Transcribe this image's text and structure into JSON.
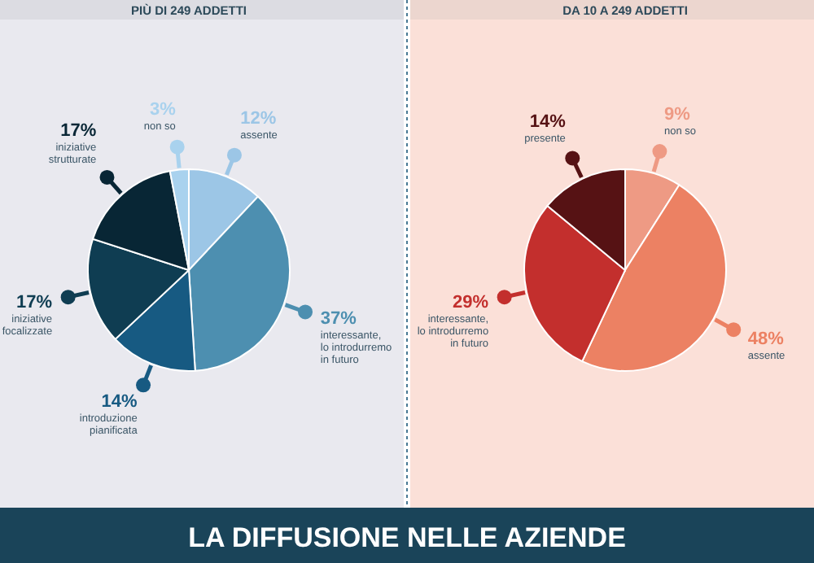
{
  "chart_data": [
    {
      "type": "pie",
      "title": "PIÙ DI 249 ADDETTI",
      "categories": [
        "assente",
        "interessante, lo introdurremo in futuro",
        "introduzione pianificata",
        "iniziative focalizzate",
        "iniziative strutturate",
        "non so"
      ],
      "values": [
        12,
        37,
        14,
        17,
        17,
        3
      ],
      "value_labels": [
        "12%",
        "37%",
        "14%",
        "17%",
        "17%",
        "3%"
      ],
      "colors": [
        "#9cc6e6",
        "#4d8fb0",
        "#175a82",
        "#0f3d52",
        "#082635",
        "#a9d2ee"
      ],
      "annotations": [
        "LA DIFFUSIONE NELLE AZIENDE"
      ]
    },
    {
      "type": "pie",
      "title": "DA 10 A 249 ADDETTI",
      "categories": [
        "non so",
        "assente",
        "interessante, lo introdurremo in futuro",
        "presente"
      ],
      "values": [
        9,
        48,
        29,
        14
      ],
      "value_labels": [
        "9%",
        "48%",
        "29%",
        "14%"
      ],
      "colors": [
        "#ee9a84",
        "#ec8163",
        "#c32f2d",
        "#561214"
      ]
    }
  ]
}
